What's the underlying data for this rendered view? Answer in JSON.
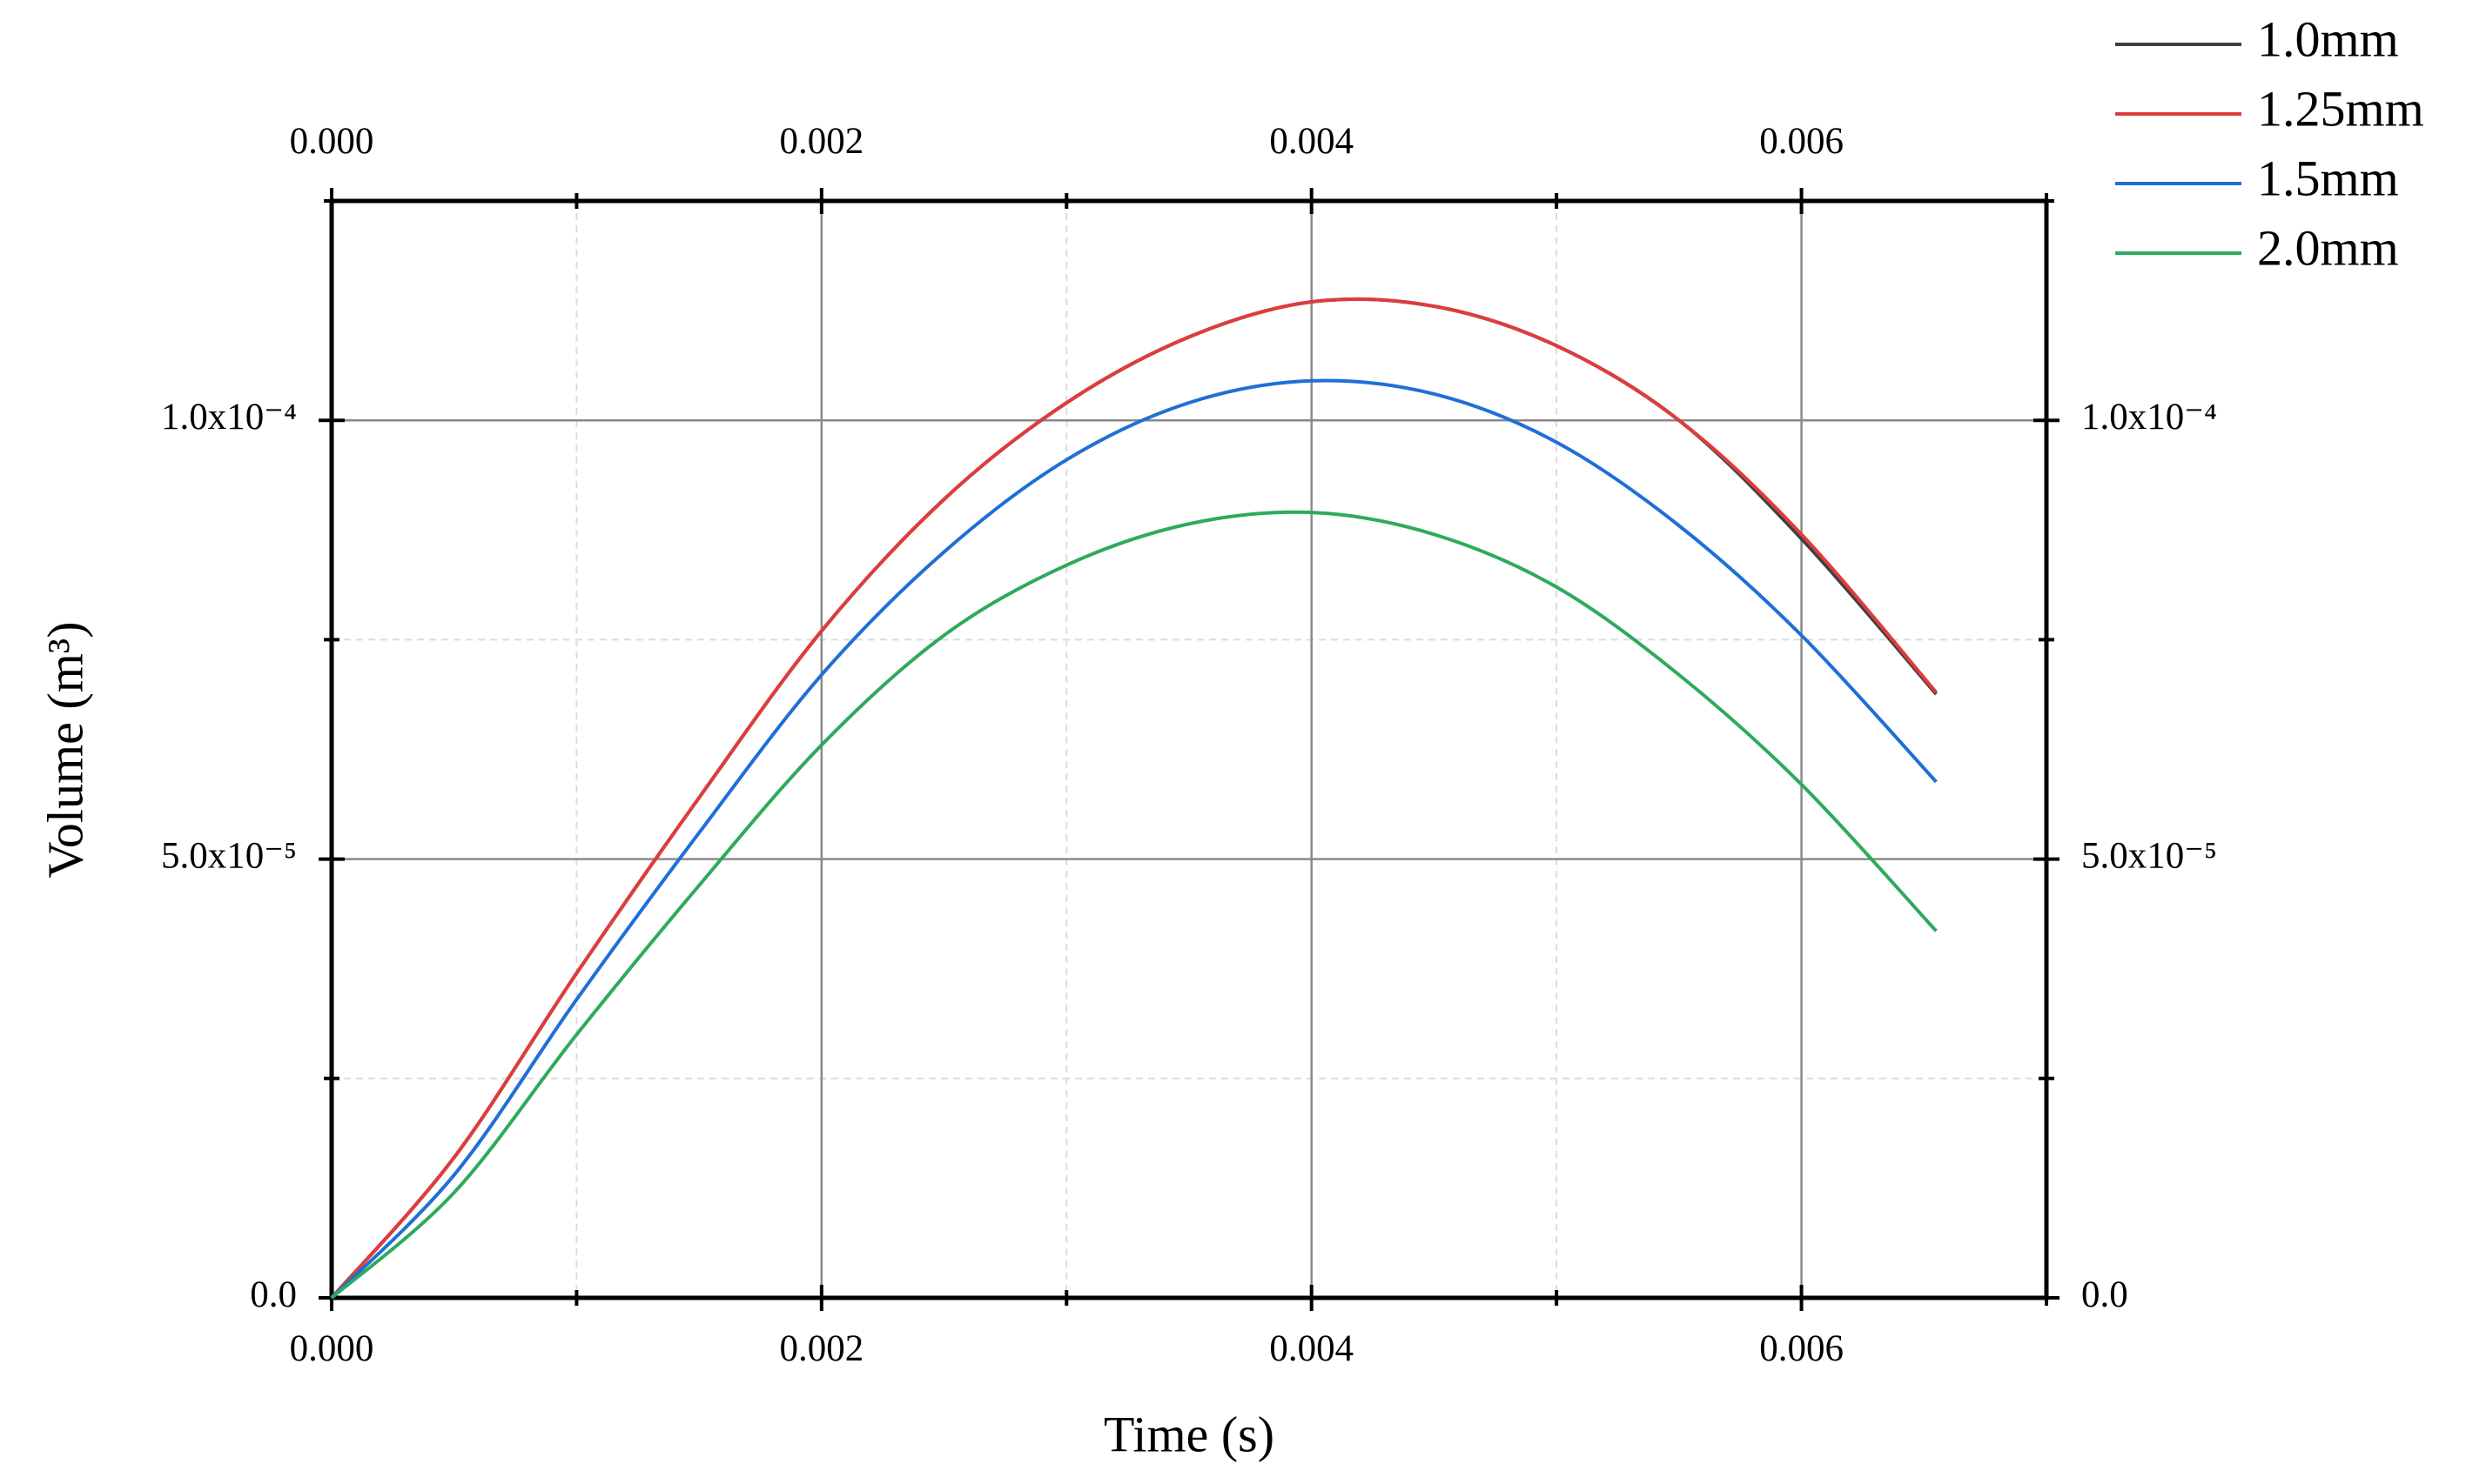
{
  "chart_data": {
    "type": "line",
    "x_label": "Time (s)",
    "y_label": "Volume (m³)",
    "x": [
      0,
      0.0005,
      0.001,
      0.0015,
      0.002,
      0.0025,
      0.003,
      0.0035,
      0.004,
      0.0045,
      0.005,
      0.0055,
      0.006,
      0.00655
    ],
    "series": [
      {
        "name": "1.0mm",
        "color": "#404040",
        "values": [
          0,
          1.6e-05,
          3.7e-05,
          5.7e-05,
          7.6e-05,
          9.1e-05,
          0.000102,
          0.0001095,
          0.0001135,
          0.000113,
          0.0001085,
          0.0001,
          8.65e-05,
          6.88e-05
        ]
      },
      {
        "name": "1.25mm",
        "color": "#e03c3c",
        "values": [
          0,
          1.6e-05,
          3.7e-05,
          5.7e-05,
          7.6e-05,
          9.1e-05,
          0.000102,
          0.0001095,
          0.0001135,
          0.000113,
          0.0001085,
          0.0001,
          8.7e-05,
          6.9e-05
        ]
      },
      {
        "name": "1.5mm",
        "color": "#1f6fd6",
        "values": [
          0,
          1.4e-05,
          3.4e-05,
          5.3e-05,
          7.1e-05,
          8.5e-05,
          9.55e-05,
          0.000102,
          0.0001045,
          0.000103,
          9.75e-05,
          8.8e-05,
          7.55e-05,
          5.88e-05
        ]
      },
      {
        "name": "2.0mm",
        "color": "#2eaa5c",
        "values": [
          0,
          1.2e-05,
          3e-05,
          4.7e-05,
          6.3e-05,
          7.55e-05,
          8.35e-05,
          8.82e-05,
          8.95e-05,
          8.7e-05,
          8.1e-05,
          7.1e-05,
          5.85e-05,
          4.18e-05
        ]
      }
    ],
    "xlim": [
      0,
      0.007
    ],
    "ylim": [
      0,
      0.000125
    ],
    "xticks": [
      {
        "value": 0,
        "label": "0.000"
      },
      {
        "value": 0.002,
        "label": "0.002"
      },
      {
        "value": 0.004,
        "label": "0.004"
      },
      {
        "value": 0.006,
        "label": "0.006"
      }
    ],
    "yticks": [
      {
        "value": 0,
        "label": "0.0"
      },
      {
        "value": 5e-05,
        "label": "5.0x10⁻⁵"
      },
      {
        "value": 0.0001,
        "label": "1.0x10⁻⁴"
      }
    ],
    "xticks_minor": [
      0.001,
      0.003,
      0.005,
      0.007
    ],
    "yticks_minor": [
      2.5e-05,
      7.5e-05,
      0.000125
    ],
    "grid": true,
    "legend": "upper right"
  }
}
